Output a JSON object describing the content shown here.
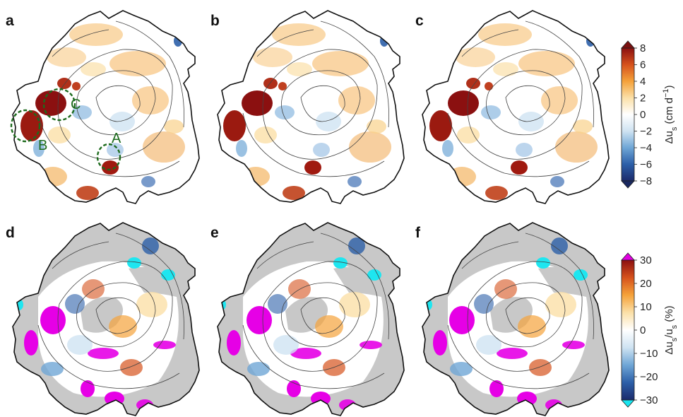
{
  "panels": [
    {
      "letter": "a",
      "variable": "velocity",
      "annotations": [
        "A",
        "B",
        "C"
      ]
    },
    {
      "letter": "b",
      "variable": "velocity"
    },
    {
      "letter": "c",
      "variable": "velocity"
    },
    {
      "letter": "d",
      "variable": "percent"
    },
    {
      "letter": "e",
      "variable": "percent"
    },
    {
      "letter": "f",
      "variable": "percent"
    }
  ],
  "colorbars": {
    "velocity": {
      "label_main": "Δu",
      "label_sub": "s",
      "label_units": "(cm d",
      "label_units_sup": "−1",
      "label_close": ")",
      "ticks": [
        "8",
        "6",
        "4",
        "2",
        "0",
        "−2",
        "−4",
        "−6",
        "−8"
      ],
      "range": [
        -8,
        8
      ],
      "colors": [
        "#1b2a6b",
        "#2c5fa8",
        "#6fa6d6",
        "#cfe3f2",
        "#ffffff",
        "#fbe0a8",
        "#f5a23a",
        "#d6521c",
        "#8b1010"
      ],
      "extend_top_color": "#7a1010",
      "extend_bottom_color": "#1a2860"
    },
    "percent": {
      "label_main": "Δu",
      "label_sub": "s",
      "label_mid": "/u",
      "label_sub2": "s",
      "label_units": "(%)",
      "ticks": [
        "30",
        "20",
        "10",
        "0",
        "−10",
        "−20",
        "−30"
      ],
      "range": [
        -30,
        30
      ],
      "colors": [
        "#1b2a6b",
        "#2c5fa8",
        "#6fa6d6",
        "#cfe3f2",
        "#ffffff",
        "#fbe0a8",
        "#f5a23a",
        "#d6521c",
        "#8b1010"
      ],
      "extend_top_color": "#e100e1",
      "extend_bottom_color": "#19e6f0"
    }
  },
  "colors": {
    "saturated_high": "#e600e6",
    "saturated_low": "#1ee6f0",
    "masked": "#c8c8c8",
    "annotation": "#1d6b1d"
  }
}
